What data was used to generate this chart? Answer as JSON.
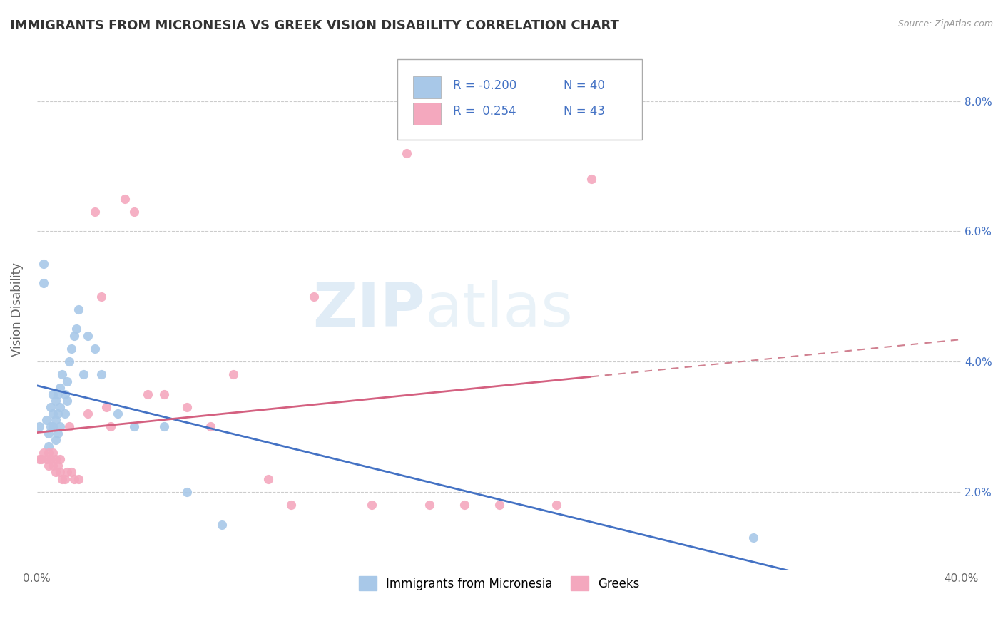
{
  "title": "IMMIGRANTS FROM MICRONESIA VS GREEK VISION DISABILITY CORRELATION CHART",
  "source": "Source: ZipAtlas.com",
  "ylabel": "Vision Disability",
  "xlim": [
    0.0,
    0.4
  ],
  "ylim": [
    0.008,
    0.088
  ],
  "yticks": [
    0.02,
    0.04,
    0.06,
    0.08
  ],
  "ytick_labels": [
    "2.0%",
    "4.0%",
    "6.0%",
    "8.0%"
  ],
  "xticks": [
    0.0,
    0.4
  ],
  "xtick_labels": [
    "0.0%",
    "40.0%"
  ],
  "legend_labels": [
    "Immigrants from Micronesia",
    "Greeks"
  ],
  "r_blue": "-0.200",
  "n_blue": "40",
  "r_pink": "0.254",
  "n_pink": "43",
  "blue_color": "#a8c8e8",
  "pink_color": "#f4a8be",
  "blue_line_color": "#4472C4",
  "pink_line_color": "#d46080",
  "pink_dash_color": "#d08090",
  "watermark_zip": "ZIP",
  "watermark_atlas": "atlas",
  "blue_scatter_x": [
    0.001,
    0.003,
    0.003,
    0.004,
    0.005,
    0.005,
    0.006,
    0.006,
    0.007,
    0.007,
    0.007,
    0.008,
    0.008,
    0.008,
    0.009,
    0.009,
    0.009,
    0.01,
    0.01,
    0.01,
    0.011,
    0.012,
    0.012,
    0.013,
    0.013,
    0.014,
    0.015,
    0.016,
    0.017,
    0.018,
    0.02,
    0.022,
    0.025,
    0.028,
    0.035,
    0.042,
    0.055,
    0.065,
    0.08,
    0.31
  ],
  "blue_scatter_y": [
    0.03,
    0.052,
    0.055,
    0.031,
    0.027,
    0.029,
    0.03,
    0.033,
    0.03,
    0.032,
    0.035,
    0.028,
    0.031,
    0.034,
    0.029,
    0.032,
    0.035,
    0.03,
    0.033,
    0.036,
    0.038,
    0.032,
    0.035,
    0.034,
    0.037,
    0.04,
    0.042,
    0.044,
    0.045,
    0.048,
    0.038,
    0.044,
    0.042,
    0.038,
    0.032,
    0.03,
    0.03,
    0.02,
    0.015,
    0.013
  ],
  "pink_scatter_x": [
    0.001,
    0.002,
    0.003,
    0.004,
    0.005,
    0.005,
    0.006,
    0.007,
    0.007,
    0.008,
    0.008,
    0.009,
    0.01,
    0.01,
    0.011,
    0.012,
    0.013,
    0.014,
    0.015,
    0.016,
    0.018,
    0.022,
    0.025,
    0.028,
    0.03,
    0.032,
    0.038,
    0.042,
    0.048,
    0.055,
    0.065,
    0.075,
    0.085,
    0.1,
    0.11,
    0.12,
    0.145,
    0.16,
    0.17,
    0.185,
    0.2,
    0.225,
    0.24
  ],
  "pink_scatter_y": [
    0.025,
    0.025,
    0.026,
    0.025,
    0.026,
    0.024,
    0.025,
    0.026,
    0.024,
    0.025,
    0.023,
    0.024,
    0.025,
    0.023,
    0.022,
    0.022,
    0.023,
    0.03,
    0.023,
    0.022,
    0.022,
    0.032,
    0.063,
    0.05,
    0.033,
    0.03,
    0.065,
    0.063,
    0.035,
    0.035,
    0.033,
    0.03,
    0.038,
    0.022,
    0.018,
    0.05,
    0.018,
    0.072,
    0.018,
    0.018,
    0.018,
    0.018,
    0.068
  ]
}
